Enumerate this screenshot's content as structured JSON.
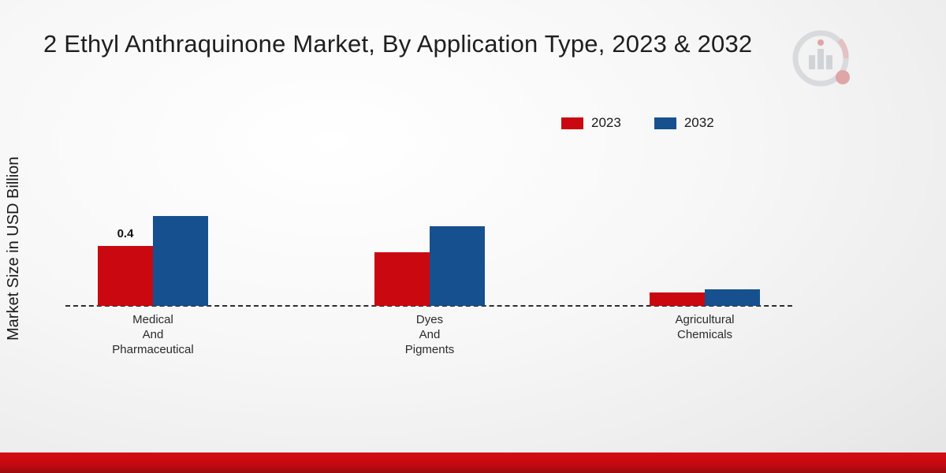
{
  "header": {
    "title": "2 Ethyl Anthraquinone Market, By Application Type, 2023 & 2032"
  },
  "axis": {
    "y_label": "Market Size in USD Billion"
  },
  "legend": {
    "items": [
      {
        "label": "2023",
        "color": "#c9090f"
      },
      {
        "label": "2032",
        "color": "#17508e"
      }
    ]
  },
  "chart_data": {
    "type": "bar",
    "title": "2 Ethyl Anthraquinone Market, By Application Type, 2023 & 2032",
    "xlabel": "",
    "ylabel": "Market Size in USD Billion",
    "categories": [
      "Medical\nAnd\nPharmaceutical",
      "Dyes\nAnd\nPigments",
      "Agricultural\nChemicals"
    ],
    "series": [
      {
        "name": "2023",
        "color": "#c9090f",
        "values": [
          0.4,
          0.36,
          0.09
        ]
      },
      {
        "name": "2032",
        "color": "#17508e",
        "values": [
          0.6,
          0.53,
          0.11
        ]
      }
    ],
    "ylim": [
      0,
      0.8
    ],
    "grid": false,
    "baseline_style": "dashed",
    "legend_position": "top-right",
    "annotations": [
      {
        "series": "2023",
        "series_index": 0,
        "category_index": 0,
        "text": "0.4"
      }
    ]
  },
  "footer": {
    "accent_color": "#c60a10"
  }
}
